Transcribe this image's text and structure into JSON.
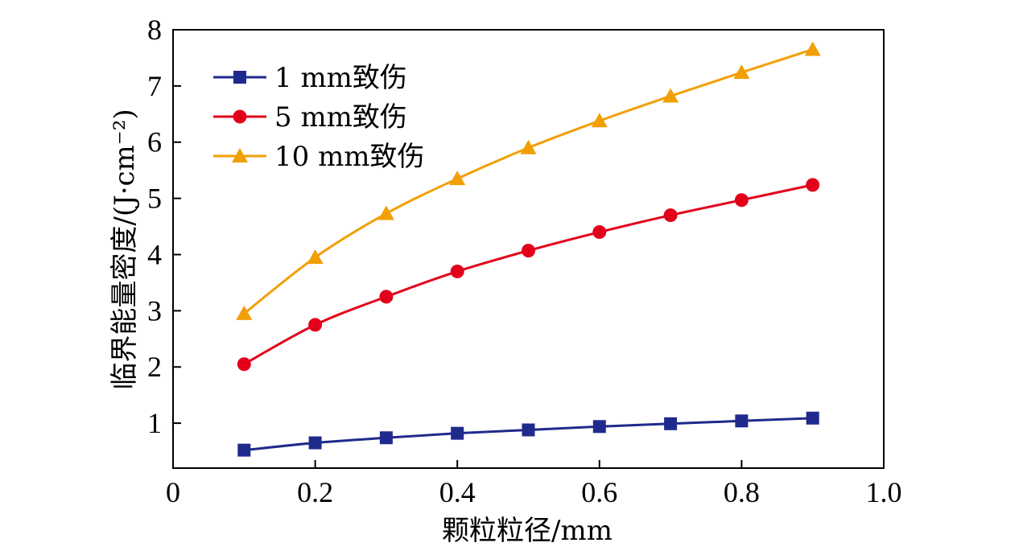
{
  "chart_data": {
    "type": "line",
    "xlabel": "颗粒粒径/mm",
    "ylabel": "临界能量密度/(J·cm⁻²)",
    "xlim": [
      0,
      1.0
    ],
    "ylim": [
      0.2,
      8
    ],
    "x_ticks": [
      "0",
      "0.2",
      "0.4",
      "0.6",
      "0.8",
      "1.0"
    ],
    "y_ticks": [
      "1",
      "2",
      "3",
      "4",
      "5",
      "6",
      "7",
      "8"
    ],
    "grid": false,
    "legend_position": "top-left",
    "x": [
      0.1,
      0.2,
      0.3,
      0.4,
      0.5,
      0.6,
      0.7,
      0.8,
      0.9
    ],
    "series": [
      {
        "name": "1 mm致伤",
        "marker": "square",
        "color": "#1f2a8c",
        "values": [
          0.52,
          0.65,
          0.74,
          0.82,
          0.88,
          0.94,
          0.99,
          1.04,
          1.09
        ]
      },
      {
        "name": "5 mm致伤",
        "marker": "circle",
        "color": "#e3001b",
        "values": [
          2.05,
          2.75,
          3.25,
          3.7,
          4.07,
          4.4,
          4.7,
          4.97,
          5.24
        ]
      },
      {
        "name": "10 mm致伤",
        "marker": "triangle",
        "color": "#f29f05",
        "values": [
          2.95,
          3.95,
          4.73,
          5.35,
          5.9,
          6.38,
          6.82,
          7.24,
          7.65
        ]
      }
    ]
  }
}
